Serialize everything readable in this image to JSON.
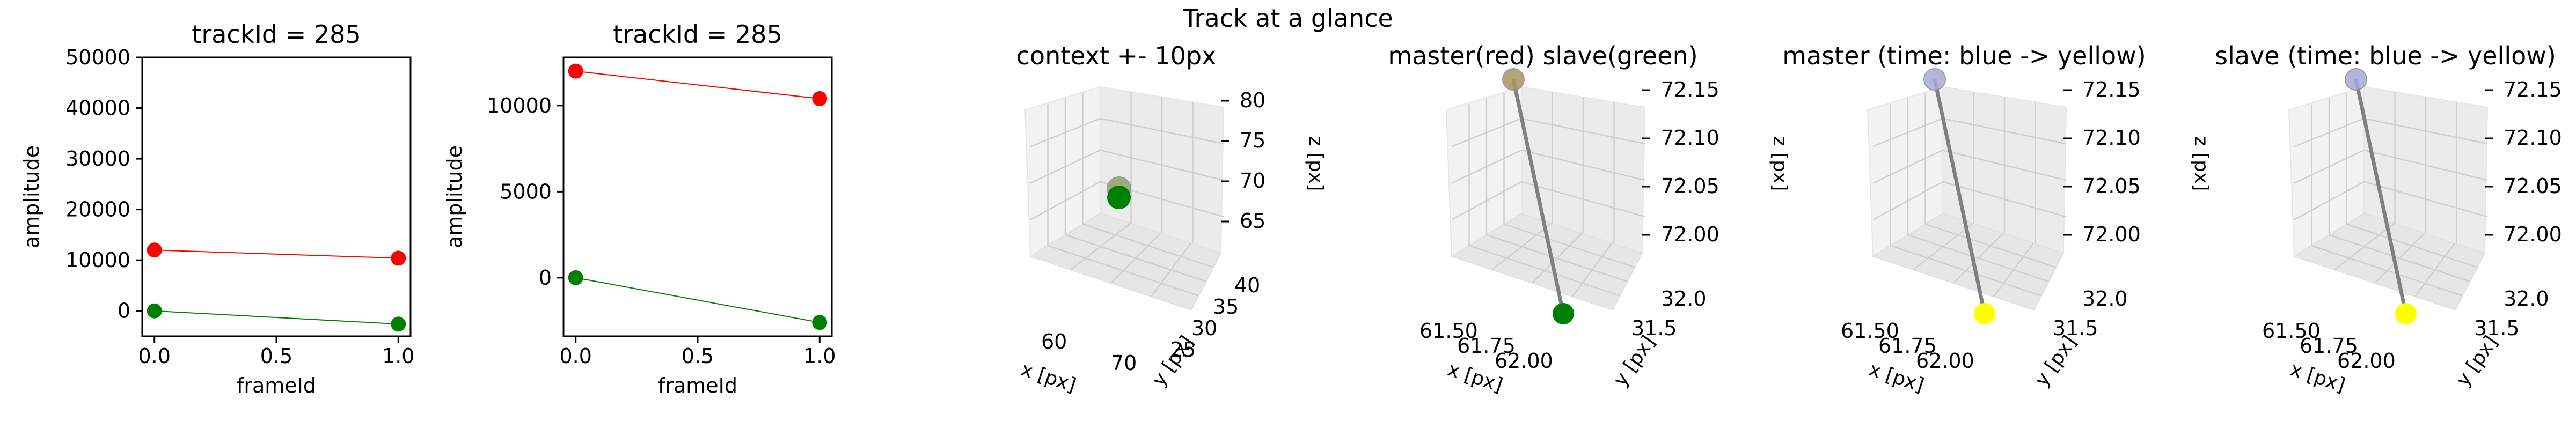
{
  "suptitle": "Track at a glance",
  "chart_data": [
    {
      "type": "line",
      "title": "trackId = 285",
      "xlabel": "frameId",
      "ylabel": "amplitude",
      "x": [
        0,
        1
      ],
      "xlim": [
        -0.05,
        1.05
      ],
      "ylim": [
        -5000,
        50000
      ],
      "xticks": [
        "0.0",
        "0.5",
        "1.0"
      ],
      "yticks": [
        "0",
        "10000",
        "20000",
        "30000",
        "40000",
        "50000"
      ],
      "series": [
        {
          "values": [
            12000,
            10400
          ],
          "color": "#ff0000"
        },
        {
          "values": [
            0,
            -2600
          ],
          "color": "#008000"
        }
      ]
    },
    {
      "type": "line",
      "title": "trackId = 285",
      "xlabel": "frameId",
      "ylabel": "amplitude",
      "x": [
        0,
        1
      ],
      "xlim": [
        -0.05,
        1.05
      ],
      "ylim": [
        -3400,
        12800
      ],
      "xticks": [
        "0.0",
        "0.5",
        "1.0"
      ],
      "yticks": [
        "0",
        "5000",
        "10000"
      ],
      "series": [
        {
          "values": [
            12000,
            10400
          ],
          "color": "#ff0000"
        },
        {
          "values": [
            0,
            -2600
          ],
          "color": "#008000"
        }
      ]
    },
    {
      "type": "scatter",
      "title": "context +- 10px",
      "xlabel": "x [px]",
      "ylabel": "y [px]",
      "zlabel": "z [px]",
      "xticks": [
        "60",
        "70"
      ],
      "yticks": [
        "25",
        "30",
        "35",
        "40"
      ],
      "zticks": [
        "65",
        "70",
        "75",
        "80"
      ],
      "points": [
        {
          "x": 61.9,
          "y": 32.0,
          "z": 72.2,
          "color": "#8fa36a"
        },
        {
          "x": 62.0,
          "y": 31.5,
          "z": 72.0,
          "color": "#008000"
        }
      ]
    },
    {
      "type": "scatter",
      "title": "master(red) slave(green)",
      "xlabel": "x [px]",
      "ylabel": "y [px]",
      "zlabel": "z [px]",
      "xticks": [
        "61.50",
        "61.75",
        "62.00"
      ],
      "yticks": [
        "31.5",
        "32.0"
      ],
      "zticks": [
        "72.00",
        "72.05",
        "72.10",
        "72.15"
      ],
      "points": [
        {
          "x": 61.9,
          "y": 32.0,
          "z": 72.2,
          "color": "#a89362"
        },
        {
          "x": 62.0,
          "y": 31.5,
          "z": 72.0,
          "color": "#008000"
        }
      ],
      "line_color": "#808080"
    },
    {
      "type": "scatter",
      "title": "master (time: blue -> yellow)",
      "xlabel": "x [px]",
      "ylabel": "y [px]",
      "zlabel": "z [px]",
      "xticks": [
        "61.50",
        "61.75",
        "62.00"
      ],
      "yticks": [
        "31.5",
        "32.0"
      ],
      "zticks": [
        "72.00",
        "72.05",
        "72.10",
        "72.15"
      ],
      "points": [
        {
          "x": 61.9,
          "y": 32.0,
          "z": 72.2,
          "color": "#a9a9d6"
        },
        {
          "x": 62.0,
          "y": 31.5,
          "z": 72.0,
          "color": "#ffff00"
        }
      ],
      "line_color": "#808080"
    },
    {
      "type": "scatter",
      "title": "slave (time: blue -> yellow)",
      "xlabel": "x [px]",
      "ylabel": "y [px]",
      "zlabel": "z [px]",
      "xticks": [
        "61.50",
        "61.75",
        "62.00"
      ],
      "yticks": [
        "31.5",
        "32.0"
      ],
      "zticks": [
        "72.00",
        "72.05",
        "72.10",
        "72.15"
      ],
      "points": [
        {
          "x": 61.9,
          "y": 32.0,
          "z": 72.2,
          "color": "#a9a9d6"
        },
        {
          "x": 62.0,
          "y": 31.5,
          "z": 72.0,
          "color": "#ffff00"
        }
      ],
      "line_color": "#808080"
    }
  ]
}
